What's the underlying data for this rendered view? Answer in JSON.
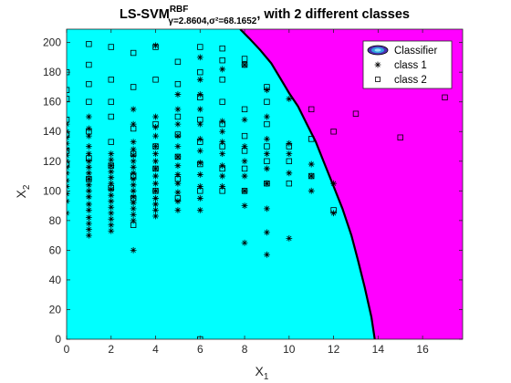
{
  "chart_data": {
    "type": "scatter",
    "title": {
      "main": "LS-SVM",
      "superscript": "RBF",
      "subscript": "γ=2.8604,σ²=68.1652",
      "suffix": ", with 2 different classes"
    },
    "xlabel": {
      "base": "X",
      "sub": "1"
    },
    "ylabel": {
      "base": "X",
      "sub": "2"
    },
    "xlim": [
      0,
      17.8
    ],
    "ylim": [
      0,
      209
    ],
    "xticks": [
      0,
      2,
      4,
      6,
      8,
      10,
      12,
      14,
      16
    ],
    "yticks": [
      0,
      20,
      40,
      60,
      80,
      100,
      120,
      140,
      160,
      180,
      200
    ],
    "grid": false,
    "legend_position": "top-right",
    "legend": [
      "Classifier",
      "class 1",
      "class 2"
    ],
    "colors": {
      "region_class1": "#00ffff",
      "region_class2": "#ff00ff",
      "boundary": "#000000",
      "markers": "#000000"
    },
    "boundary": [
      [
        7.8,
        209
      ],
      [
        8.2,
        203
      ],
      [
        8.7,
        195
      ],
      [
        9.2,
        186
      ],
      [
        9.6,
        176
      ],
      [
        10.0,
        166
      ],
      [
        10.4,
        157
      ],
      [
        10.8,
        145
      ],
      [
        11.2,
        133
      ],
      [
        11.6,
        118
      ],
      [
        12.0,
        103
      ],
      [
        12.4,
        88
      ],
      [
        12.8,
        70
      ],
      [
        13.1,
        53
      ],
      [
        13.4,
        35
      ],
      [
        13.7,
        15
      ],
      [
        13.85,
        0
      ]
    ],
    "series": [
      {
        "name": "class 1",
        "marker": "asterisk",
        "points": [
          [
            0,
            85
          ],
          [
            0,
            93
          ],
          [
            0,
            98
          ],
          [
            0,
            103
          ],
          [
            0,
            107
          ],
          [
            0,
            112
          ],
          [
            0,
            116
          ],
          [
            0,
            120
          ],
          [
            0,
            124
          ],
          [
            0,
            128
          ],
          [
            0,
            132
          ],
          [
            0,
            136
          ],
          [
            0,
            140
          ],
          [
            0,
            145
          ],
          [
            1,
            70
          ],
          [
            1,
            74
          ],
          [
            1,
            78
          ],
          [
            1,
            82
          ],
          [
            1,
            87
          ],
          [
            1,
            91
          ],
          [
            1,
            96
          ],
          [
            1,
            100
          ],
          [
            1,
            104
          ],
          [
            1,
            108
          ],
          [
            1,
            112
          ],
          [
            1,
            116
          ],
          [
            1,
            120
          ],
          [
            1,
            125
          ],
          [
            1,
            130
          ],
          [
            1,
            137
          ],
          [
            1,
            142
          ],
          [
            1,
            150
          ],
          [
            2,
            73
          ],
          [
            2,
            77
          ],
          [
            2,
            81
          ],
          [
            2,
            85
          ],
          [
            2,
            89
          ],
          [
            2,
            93
          ],
          [
            2,
            97
          ],
          [
            2,
            101
          ],
          [
            2,
            105
          ],
          [
            2,
            109
          ],
          [
            2,
            113
          ],
          [
            2,
            117
          ],
          [
            2,
            121
          ],
          [
            2,
            125
          ],
          [
            3,
            60
          ],
          [
            3,
            80
          ],
          [
            3,
            84
          ],
          [
            3,
            88
          ],
          [
            3,
            92
          ],
          [
            3,
            96
          ],
          [
            3,
            100
          ],
          [
            3,
            104
          ],
          [
            3,
            108
          ],
          [
            3,
            112
          ],
          [
            3,
            116
          ],
          [
            3,
            120
          ],
          [
            3,
            124
          ],
          [
            3,
            128
          ],
          [
            3,
            133
          ],
          [
            3,
            145
          ],
          [
            3,
            155
          ],
          [
            4,
            83
          ],
          [
            4,
            87
          ],
          [
            4,
            91
          ],
          [
            4,
            95
          ],
          [
            4,
            100
          ],
          [
            4,
            105
          ],
          [
            4,
            110
          ],
          [
            4,
            115
          ],
          [
            4,
            120
          ],
          [
            4,
            125
          ],
          [
            4,
            130
          ],
          [
            4,
            137
          ],
          [
            4,
            143
          ],
          [
            4,
            150
          ],
          [
            4,
            198
          ],
          [
            5,
            87
          ],
          [
            5,
            93
          ],
          [
            5,
            99
          ],
          [
            5,
            105
          ],
          [
            5,
            111
          ],
          [
            5,
            117
          ],
          [
            5,
            123
          ],
          [
            5,
            130
          ],
          [
            5,
            137
          ],
          [
            5,
            145
          ],
          [
            5,
            155
          ],
          [
            5,
            165
          ],
          [
            6,
            87
          ],
          [
            6,
            95
          ],
          [
            6,
            103
          ],
          [
            6,
            111
          ],
          [
            6,
            119
          ],
          [
            6,
            127
          ],
          [
            6,
            135
          ],
          [
            6,
            145
          ],
          [
            6,
            155
          ],
          [
            6,
            165
          ],
          [
            6,
            175
          ],
          [
            6,
            190
          ],
          [
            7,
            103
          ],
          [
            7,
            110
          ],
          [
            7,
            117
          ],
          [
            7,
            125
          ],
          [
            7,
            133
          ],
          [
            7,
            140
          ],
          [
            7,
            147
          ],
          [
            7,
            182
          ],
          [
            8,
            65
          ],
          [
            8,
            90
          ],
          [
            8,
            100
          ],
          [
            8,
            110
          ],
          [
            8,
            120
          ],
          [
            8,
            130
          ],
          [
            8,
            148
          ],
          [
            8,
            185
          ],
          [
            9,
            57
          ],
          [
            9,
            72
          ],
          [
            9,
            88
          ],
          [
            9,
            105
          ],
          [
            9,
            115
          ],
          [
            9,
            125
          ],
          [
            9,
            135
          ],
          [
            9,
            150
          ],
          [
            9,
            168
          ],
          [
            10,
            68
          ],
          [
            10,
            112
          ],
          [
            10,
            125
          ],
          [
            10,
            132
          ],
          [
            10,
            162
          ],
          [
            11,
            100
          ],
          [
            11,
            110
          ],
          [
            11,
            118
          ],
          [
            12,
            85
          ],
          [
            12,
            105
          ]
        ]
      },
      {
        "name": "class 2",
        "marker": "square",
        "points": [
          [
            0,
            118
          ],
          [
            0,
            127
          ],
          [
            0,
            138
          ],
          [
            0,
            148
          ],
          [
            0,
            162
          ],
          [
            0,
            168
          ],
          [
            0,
            180
          ],
          [
            1,
            108
          ],
          [
            1,
            122
          ],
          [
            1,
            140
          ],
          [
            1,
            160
          ],
          [
            1,
            172
          ],
          [
            1,
            185
          ],
          [
            1,
            199
          ],
          [
            2,
            102
          ],
          [
            2,
            117
          ],
          [
            2,
            133
          ],
          [
            2,
            150
          ],
          [
            2,
            160
          ],
          [
            2,
            175
          ],
          [
            2,
            197
          ],
          [
            3,
            77
          ],
          [
            3,
            95
          ],
          [
            3,
            110
          ],
          [
            3,
            125
          ],
          [
            3,
            142
          ],
          [
            3,
            170
          ],
          [
            3,
            193
          ],
          [
            4,
            100
          ],
          [
            4,
            115
          ],
          [
            4,
            130
          ],
          [
            4,
            145
          ],
          [
            4,
            175
          ],
          [
            4,
            197
          ],
          [
            5,
            95
          ],
          [
            5,
            108
          ],
          [
            5,
            123
          ],
          [
            5,
            138
          ],
          [
            5,
            150
          ],
          [
            5,
            172
          ],
          [
            5,
            187
          ],
          [
            6,
            0
          ],
          [
            6,
            100
          ],
          [
            6,
            118
          ],
          [
            6,
            133
          ],
          [
            6,
            148
          ],
          [
            6,
            163
          ],
          [
            6,
            180
          ],
          [
            6,
            197
          ],
          [
            7,
            100
          ],
          [
            7,
            115
          ],
          [
            7,
            130
          ],
          [
            7,
            145
          ],
          [
            7,
            160
          ],
          [
            7,
            175
          ],
          [
            7,
            188
          ],
          [
            7,
            196
          ],
          [
            8,
            100
          ],
          [
            8,
            115
          ],
          [
            8,
            127
          ],
          [
            8,
            137
          ],
          [
            8,
            155
          ],
          [
            8,
            185
          ],
          [
            8,
            189
          ],
          [
            9,
            105
          ],
          [
            9,
            120
          ],
          [
            9,
            130
          ],
          [
            9,
            145
          ],
          [
            9,
            160
          ],
          [
            9,
            170
          ],
          [
            10,
            105
          ],
          [
            10,
            120
          ],
          [
            10,
            130
          ],
          [
            11,
            110
          ],
          [
            11,
            135
          ],
          [
            11,
            155
          ],
          [
            12,
            87
          ],
          [
            12,
            140
          ],
          [
            13,
            152
          ],
          [
            15,
            136
          ],
          [
            17,
            163
          ]
        ]
      }
    ]
  }
}
